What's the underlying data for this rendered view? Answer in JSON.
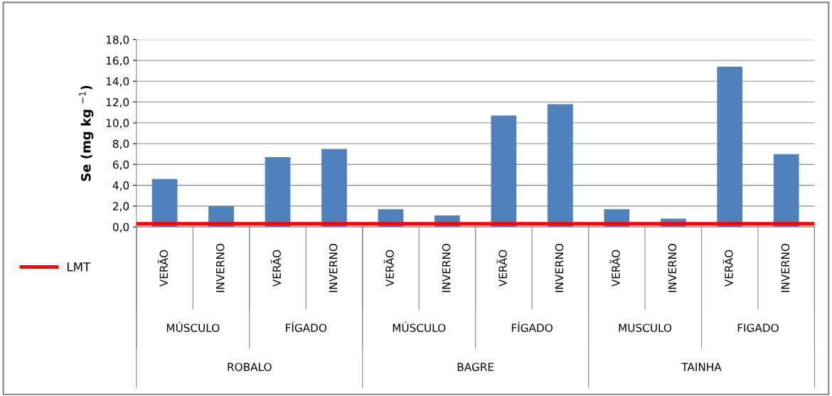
{
  "chart_data": {
    "type": "bar",
    "ylabel": "Se (mg kg $^{−1}$)",
    "categories": [
      "VERÃO",
      "INVERNO",
      "VERÃO",
      "INVERNO",
      "VERÃO",
      "INVERNO",
      "VERÃO",
      "INVERNO",
      "VERÃO",
      "INVERNO",
      "VERÃO",
      "INVERNO"
    ],
    "values": [
      4.6,
      2.0,
      6.7,
      7.5,
      1.7,
      1.1,
      10.7,
      11.8,
      1.7,
      0.8,
      15.4,
      7.0
    ],
    "color": "#4f81bd",
    "ylim": [
      0,
      18
    ],
    "yticks": [
      {
        "value": 0,
        "label": "0,0"
      },
      {
        "value": 2,
        "label": "2,0"
      },
      {
        "value": 4,
        "label": "4,0"
      },
      {
        "value": 6,
        "label": "6,0"
      },
      {
        "value": 8,
        "label": "8,0"
      },
      {
        "value": 10,
        "label": "10,0"
      },
      {
        "value": 12,
        "label": "12,0"
      },
      {
        "value": 14,
        "label": "14,0"
      },
      {
        "value": 16,
        "label": "16,0"
      },
      {
        "value": 18,
        "label": "18,0"
      }
    ],
    "grid": "y",
    "legend": "left",
    "ref_lines": [
      {
        "axis": "y",
        "value": 0.3,
        "label": "LMT",
        "color": "#ff0000"
      }
    ],
    "annotations": [
      "MÚSCULO",
      "FÍGADO",
      "MÚSCULO",
      "FÍGADO",
      "MUSCULO",
      "FIGADO",
      "ROBALO",
      "BAGRE",
      "TAINHA"
    ]
  }
}
